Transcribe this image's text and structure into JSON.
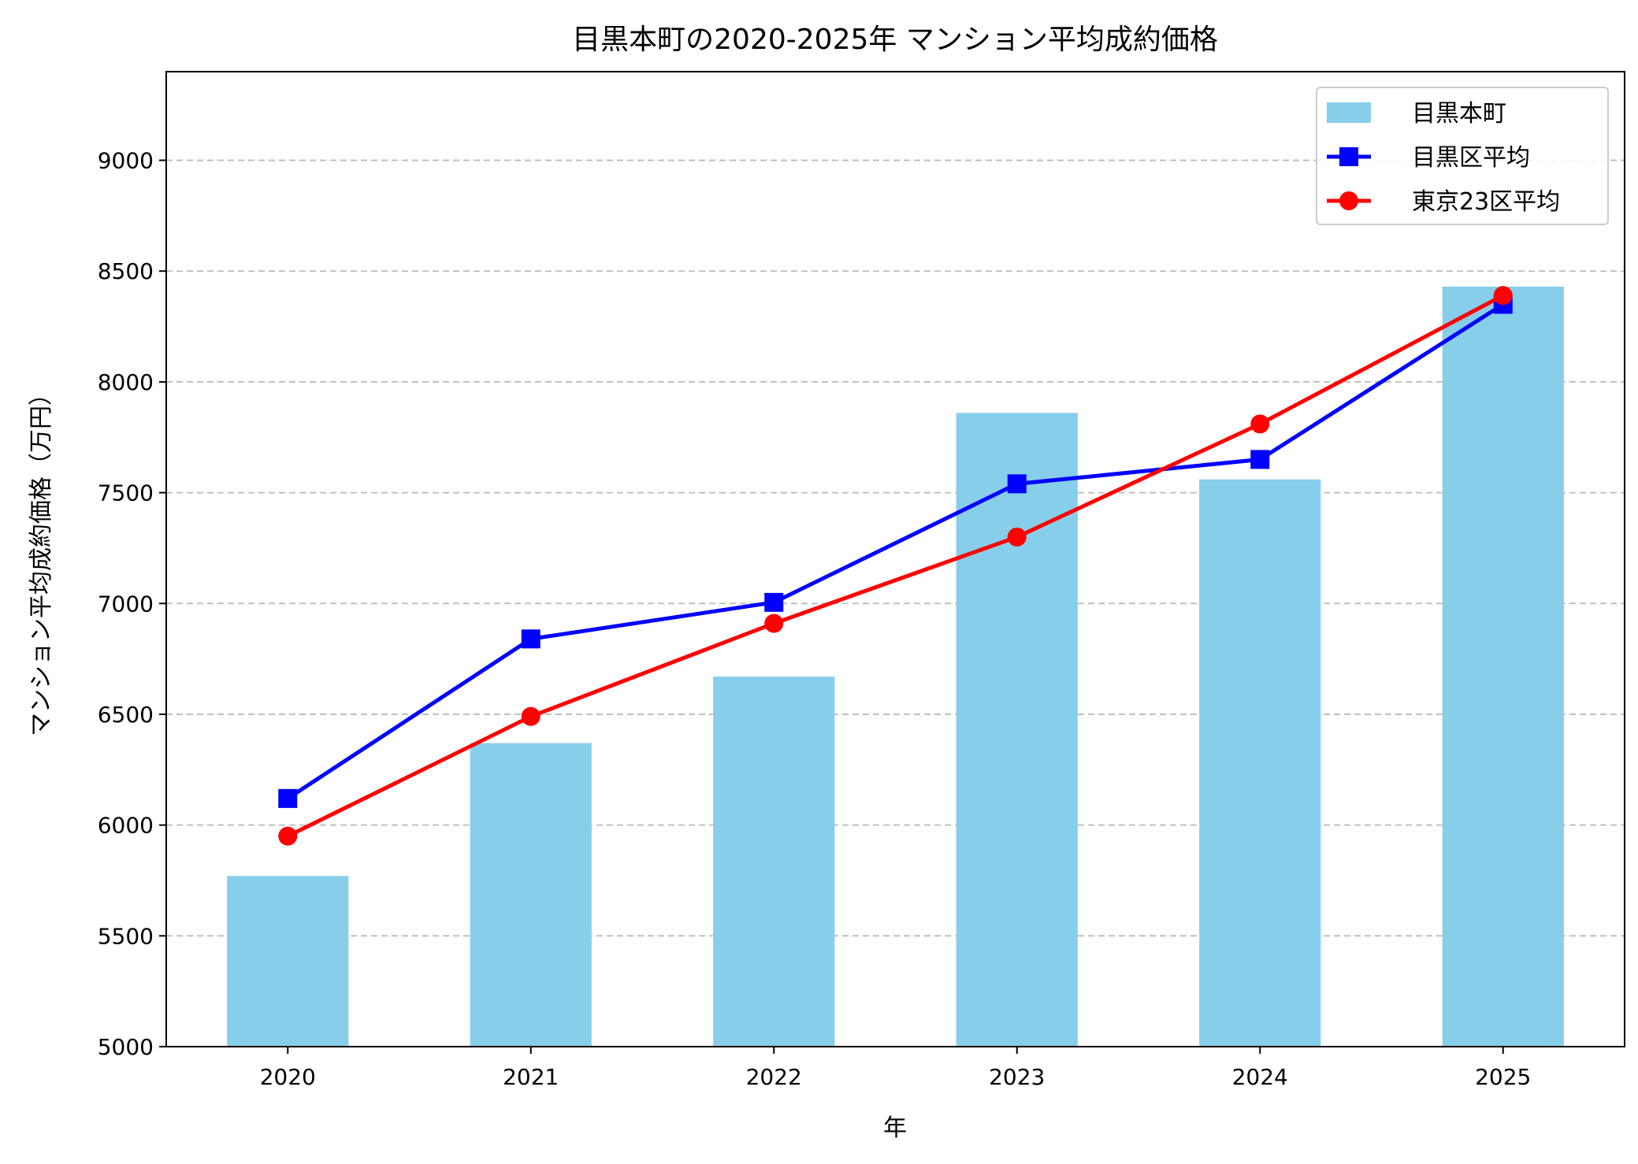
{
  "chart_data": {
    "type": "bar+line",
    "title": "目黒本町の2020-2025年 マンション平均成約価格",
    "xlabel": "年",
    "ylabel": "マンション平均成約価格（万円）",
    "categories": [
      "2020",
      "2021",
      "2022",
      "2023",
      "2024",
      "2025"
    ],
    "ylim": [
      5000,
      9400
    ],
    "yticks": [
      5000,
      5500,
      6000,
      6500,
      7000,
      7500,
      8000,
      8500,
      9000
    ],
    "grid": "horizontal dashed",
    "legend_position": "top-right",
    "series": [
      {
        "name": "目黒本町",
        "type": "bar",
        "color": "#87CEEB",
        "values": [
          5770,
          6370,
          6670,
          7860,
          7560,
          8430
        ]
      },
      {
        "name": "目黒区平均",
        "type": "line",
        "marker": "square",
        "color": "#0000FF",
        "values": [
          6120,
          6840,
          7005,
          7540,
          7650,
          8350
        ]
      },
      {
        "name": "東京23区平均",
        "type": "line",
        "marker": "circle",
        "color": "#FF0000",
        "values": [
          5950,
          6490,
          6910,
          7300,
          7810,
          8390
        ]
      }
    ]
  }
}
